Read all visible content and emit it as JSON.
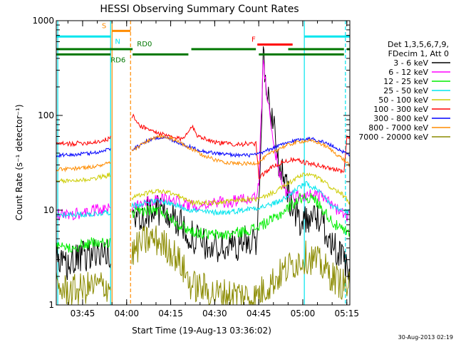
{
  "chart_data": {
    "type": "line",
    "title": "HESSI Observing Summary Count Rates",
    "xlabel": "Start Time (19-Aug-13 03:36:02)",
    "ylabel": "Count Rate (s⁻¹ detector⁻¹)",
    "x_unit": "minutes after 03:36:02",
    "xlim": [
      0,
      100
    ],
    "ylim": [
      1,
      1000
    ],
    "yscale": "log",
    "x_ticks": [
      {
        "x": 8.97,
        "label": "03:45"
      },
      {
        "x": 23.97,
        "label": "04:00"
      },
      {
        "x": 38.97,
        "label": "04:15"
      },
      {
        "x": 53.97,
        "label": "04:30"
      },
      {
        "x": 68.97,
        "label": "04:45"
      },
      {
        "x": 83.97,
        "label": "05:00"
      },
      {
        "x": 98.97,
        "label": "05:15"
      }
    ],
    "y_ticks": [
      {
        "y": 1,
        "label": "1"
      },
      {
        "y": 10,
        "label": "10"
      },
      {
        "y": 100,
        "label": "100"
      },
      {
        "y": 1000,
        "label": "1000"
      }
    ],
    "legend_title": [
      "Det 1,3,5,6,7,9,",
      "FDecim 1, Att 0"
    ],
    "legend_position": "right",
    "timestamp": "30-Aug-2013 02:19",
    "vlines": [
      {
        "x": 0.5,
        "color": "#00e5ee",
        "style": "solid"
      },
      {
        "x": 18.5,
        "color": "#00e5ee",
        "style": "solid"
      },
      {
        "x": 19.0,
        "color": "#ff8c00",
        "style": "solid"
      },
      {
        "x": 25.3,
        "color": "#ff8c00",
        "style": "dashed"
      },
      {
        "x": 84.5,
        "color": "#00e5ee",
        "style": "solid"
      },
      {
        "x": 98.5,
        "color": "#00e5ee",
        "style": "dashed"
      }
    ],
    "flag_bars": [
      {
        "label": "",
        "color": "#00e5ee",
        "y": 680,
        "segments": [
          [
            0,
            18.5
          ],
          [
            84.5,
            100
          ]
        ]
      },
      {
        "label": "S",
        "color": "#ff8c00",
        "y": 780,
        "segments": [
          [
            19.0,
            25.3
          ]
        ],
        "label_x": 15.5
      },
      {
        "label": "N",
        "color": "#00e5ee",
        "y": 690,
        "segments": [],
        "label_x": 20.0
      },
      {
        "label": "F",
        "color": "#ff0000",
        "y": 560,
        "segments": [
          [
            68.5,
            80.5
          ]
        ],
        "label_x": 66.5
      },
      {
        "label": "RD0",
        "color": "#007700",
        "y": 500,
        "segments": [
          [
            0,
            26
          ],
          [
            46,
            68
          ],
          [
            79,
            98
          ],
          [
            99,
            100
          ]
        ],
        "label_x": 27.5
      },
      {
        "label": "RD6",
        "color": "#007700",
        "y": 440,
        "segments": [
          [
            0,
            18.5
          ],
          [
            26,
            45
          ],
          [
            69,
            98
          ]
        ],
        "label_x": 18.5
      }
    ],
    "series": [
      {
        "name": "3 - 6 keV",
        "color": "#000000",
        "noise": 0.35,
        "points": [
          [
            0,
            3
          ],
          [
            2,
            2.5
          ],
          [
            5,
            2.8
          ],
          [
            8,
            3
          ],
          [
            11,
            3.5
          ],
          [
            14,
            3.5
          ],
          [
            17,
            3.6
          ],
          [
            18.5,
            3
          ],
          [
            26,
            8
          ],
          [
            30,
            9.5
          ],
          [
            35,
            10
          ],
          [
            40,
            8.5
          ],
          [
            43,
            6.5
          ],
          [
            47,
            5
          ],
          [
            52,
            4
          ],
          [
            58,
            4
          ],
          [
            63,
            4.5
          ],
          [
            68,
            5
          ],
          [
            69,
            12
          ],
          [
            70.5,
            380
          ],
          [
            72,
            160
          ],
          [
            74,
            80
          ],
          [
            76,
            30
          ],
          [
            79,
            15
          ],
          [
            81,
            9
          ],
          [
            83,
            8
          ],
          [
            86,
            8.5
          ],
          [
            89,
            8.5
          ],
          [
            92,
            6
          ],
          [
            95,
            4
          ],
          [
            98,
            2.8
          ],
          [
            99,
            2.2
          ],
          [
            100,
            2
          ]
        ]
      },
      {
        "name": "6 - 12 keV",
        "color": "#ff00ff",
        "noise": 0.13,
        "points": [
          [
            0,
            9
          ],
          [
            5,
            9
          ],
          [
            10,
            9.5
          ],
          [
            14,
            10
          ],
          [
            17,
            10
          ],
          [
            18.5,
            11
          ],
          [
            26,
            11
          ],
          [
            28,
            12
          ],
          [
            33,
            13
          ],
          [
            38,
            13
          ],
          [
            43,
            12
          ],
          [
            46,
            11
          ],
          [
            52,
            12
          ],
          [
            58,
            12
          ],
          [
            64,
            13
          ],
          [
            68,
            14
          ],
          [
            69,
            20
          ],
          [
            70.5,
            360
          ],
          [
            72,
            150
          ],
          [
            74,
            50
          ],
          [
            76,
            25
          ],
          [
            78,
            16
          ],
          [
            80,
            14
          ],
          [
            84,
            14
          ],
          [
            87,
            15
          ],
          [
            90,
            14
          ],
          [
            93,
            12
          ],
          [
            96,
            10
          ],
          [
            98,
            9
          ],
          [
            100,
            8.5
          ]
        ]
      },
      {
        "name": "12 - 25 keV",
        "color": "#00ee00",
        "noise": 0.12,
        "points": [
          [
            0,
            4
          ],
          [
            3,
            4
          ],
          [
            8,
            4.2
          ],
          [
            12,
            4.5
          ],
          [
            16,
            4.5
          ],
          [
            18.5,
            4.5
          ],
          [
            26,
            9
          ],
          [
            30,
            10
          ],
          [
            35,
            10
          ],
          [
            38,
            9
          ],
          [
            42,
            7
          ],
          [
            46,
            6
          ],
          [
            52,
            5.5
          ],
          [
            58,
            5.5
          ],
          [
            64,
            6
          ],
          [
            68,
            6.5
          ],
          [
            70,
            7
          ],
          [
            74,
            8
          ],
          [
            78,
            10
          ],
          [
            81,
            12
          ],
          [
            84,
            14
          ],
          [
            88,
            13
          ],
          [
            91,
            10
          ],
          [
            95,
            7
          ],
          [
            98,
            6
          ],
          [
            100,
            5.5
          ]
        ]
      },
      {
        "name": "25 - 50 keV",
        "color": "#00e5ee",
        "noise": 0.06,
        "points": [
          [
            0,
            9
          ],
          [
            5,
            9
          ],
          [
            10,
            9
          ],
          [
            14,
            9.2
          ],
          [
            17,
            9.5
          ],
          [
            18.5,
            9.5
          ],
          [
            26,
            11
          ],
          [
            30,
            12
          ],
          [
            34,
            12.5
          ],
          [
            38,
            12
          ],
          [
            42,
            11
          ],
          [
            46,
            10
          ],
          [
            52,
            9.5
          ],
          [
            58,
            9.5
          ],
          [
            63,
            10
          ],
          [
            67,
            10.5
          ],
          [
            71,
            11
          ],
          [
            75,
            12
          ],
          [
            79,
            14
          ],
          [
            82,
            17
          ],
          [
            85,
            19
          ],
          [
            88,
            17
          ],
          [
            91,
            14
          ],
          [
            94,
            11
          ],
          [
            97,
            10
          ],
          [
            100,
            9.5
          ]
        ]
      },
      {
        "name": "50 - 100 keV",
        "color": "#cccc00",
        "noise": 0.05,
        "points": [
          [
            0,
            20
          ],
          [
            5,
            20.5
          ],
          [
            10,
            21
          ],
          [
            14,
            22
          ],
          [
            17,
            23
          ],
          [
            18.5,
            24
          ],
          [
            26,
            13.5
          ],
          [
            30,
            15
          ],
          [
            34,
            16
          ],
          [
            38,
            15.5
          ],
          [
            42,
            14
          ],
          [
            44,
            13
          ],
          [
            46,
            12
          ],
          [
            50,
            12
          ],
          [
            55,
            12
          ],
          [
            60,
            12.5
          ],
          [
            65,
            13
          ],
          [
            69,
            13
          ],
          [
            71,
            14
          ],
          [
            75,
            16
          ],
          [
            79,
            19
          ],
          [
            82,
            22
          ],
          [
            85,
            24
          ],
          [
            88,
            23
          ],
          [
            91,
            20
          ],
          [
            94,
            17
          ],
          [
            97,
            15
          ],
          [
            100,
            12
          ]
        ]
      },
      {
        "name": "100 - 300 keV",
        "color": "#ff0000",
        "noise": 0.05,
        "points": [
          [
            0,
            50
          ],
          [
            4,
            50
          ],
          [
            8,
            51
          ],
          [
            12,
            52
          ],
          [
            16,
            54
          ],
          [
            18.5,
            58
          ],
          [
            26,
            100
          ],
          [
            28,
            80
          ],
          [
            32,
            70
          ],
          [
            36,
            63
          ],
          [
            40,
            58
          ],
          [
            43,
            56
          ],
          [
            46,
            78
          ],
          [
            48,
            62
          ],
          [
            52,
            55
          ],
          [
            56,
            51
          ],
          [
            60,
            50
          ],
          [
            64,
            50
          ],
          [
            68,
            50
          ],
          [
            69,
            22
          ],
          [
            71,
            25
          ],
          [
            74,
            29
          ],
          [
            77,
            32
          ],
          [
            80,
            34
          ],
          [
            83,
            33
          ],
          [
            86,
            31
          ],
          [
            89,
            30
          ],
          [
            92,
            28
          ],
          [
            96,
            27
          ],
          [
            98,
            25
          ],
          [
            99,
            60
          ],
          [
            100,
            55
          ]
        ]
      },
      {
        "name": "300 - 800 keV",
        "color": "#0000ff",
        "noise": 0.04,
        "points": [
          [
            0,
            38
          ],
          [
            4,
            38
          ],
          [
            8,
            39
          ],
          [
            12,
            40
          ],
          [
            16,
            42
          ],
          [
            18.5,
            45
          ],
          [
            26,
            44
          ],
          [
            30,
            52
          ],
          [
            33,
            57
          ],
          [
            36,
            59
          ],
          [
            39,
            56
          ],
          [
            42,
            51
          ],
          [
            46,
            46
          ],
          [
            50,
            42
          ],
          [
            54,
            40
          ],
          [
            58,
            39
          ],
          [
            62,
            38
          ],
          [
            66,
            38
          ],
          [
            69,
            39
          ],
          [
            72,
            43
          ],
          [
            76,
            48
          ],
          [
            80,
            53
          ],
          [
            83,
            56
          ],
          [
            86,
            57
          ],
          [
            89,
            55
          ],
          [
            92,
            51
          ],
          [
            95,
            46
          ],
          [
            98,
            41
          ],
          [
            100,
            38
          ]
        ]
      },
      {
        "name": "800 - 7000 keV",
        "color": "#ff8c00",
        "noise": 0.04,
        "points": [
          [
            0,
            27
          ],
          [
            4,
            27
          ],
          [
            8,
            28
          ],
          [
            12,
            28.5
          ],
          [
            16,
            30
          ],
          [
            18.5,
            32
          ],
          [
            26,
            42
          ],
          [
            30,
            52
          ],
          [
            33,
            57
          ],
          [
            36,
            60
          ],
          [
            39,
            57
          ],
          [
            42,
            52
          ],
          [
            46,
            44
          ],
          [
            50,
            38
          ],
          [
            54,
            34
          ],
          [
            58,
            32
          ],
          [
            62,
            31
          ],
          [
            66,
            31
          ],
          [
            69,
            32
          ],
          [
            72,
            38
          ],
          [
            76,
            45
          ],
          [
            80,
            50
          ],
          [
            83,
            53
          ],
          [
            86,
            54
          ],
          [
            89,
            52
          ],
          [
            92,
            47
          ],
          [
            95,
            40
          ],
          [
            98,
            34
          ],
          [
            100,
            30
          ]
        ]
      },
      {
        "name": "7000 - 20000 keV",
        "color": "#8b8b00",
        "noise": 0.35,
        "points": [
          [
            0,
            1.5
          ],
          [
            5,
            1.4
          ],
          [
            10,
            1.5
          ],
          [
            14,
            1.6
          ],
          [
            17,
            1.6
          ],
          [
            18.5,
            1.5
          ],
          [
            26,
            3.5
          ],
          [
            29,
            4.5
          ],
          [
            32,
            5
          ],
          [
            35,
            4.7
          ],
          [
            38,
            4
          ],
          [
            40,
            3.5
          ],
          [
            43,
            2.5
          ],
          [
            46,
            1.6
          ],
          [
            50,
            1.5
          ],
          [
            54,
            1.3
          ],
          [
            58,
            1.3
          ],
          [
            62,
            1.3
          ],
          [
            66,
            1.2
          ],
          [
            68,
            1.2
          ],
          [
            70,
            1.4
          ],
          [
            74,
            1.8
          ],
          [
            77,
            2.2
          ],
          [
            80,
            2.6
          ],
          [
            83,
            3
          ],
          [
            85,
            3.2
          ],
          [
            88,
            3
          ],
          [
            91,
            2.5
          ],
          [
            94,
            2
          ],
          [
            97,
            1.7
          ],
          [
            100,
            1.5
          ]
        ]
      }
    ]
  }
}
